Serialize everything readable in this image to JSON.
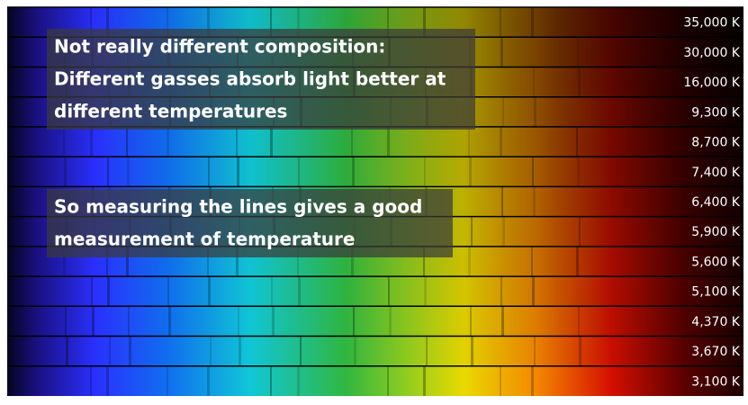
{
  "temperatures": [
    "35,000 K",
    "30,000 K",
    "16,000 K",
    "9,300 K",
    "8,700 K",
    "7,400 K",
    "6,400 K",
    "5,900 K",
    "5,600 K",
    "5,100 K",
    "4,370 K",
    "3,670 K",
    "3,100 K"
  ],
  "notes": [
    {
      "lines": [
        "Not really different composition:",
        "Different gasses absorb light better at",
        "different temperatures"
      ]
    },
    {
      "lines": [
        "So measuring the lines gives a good",
        "measurement of temperature"
      ]
    }
  ]
}
